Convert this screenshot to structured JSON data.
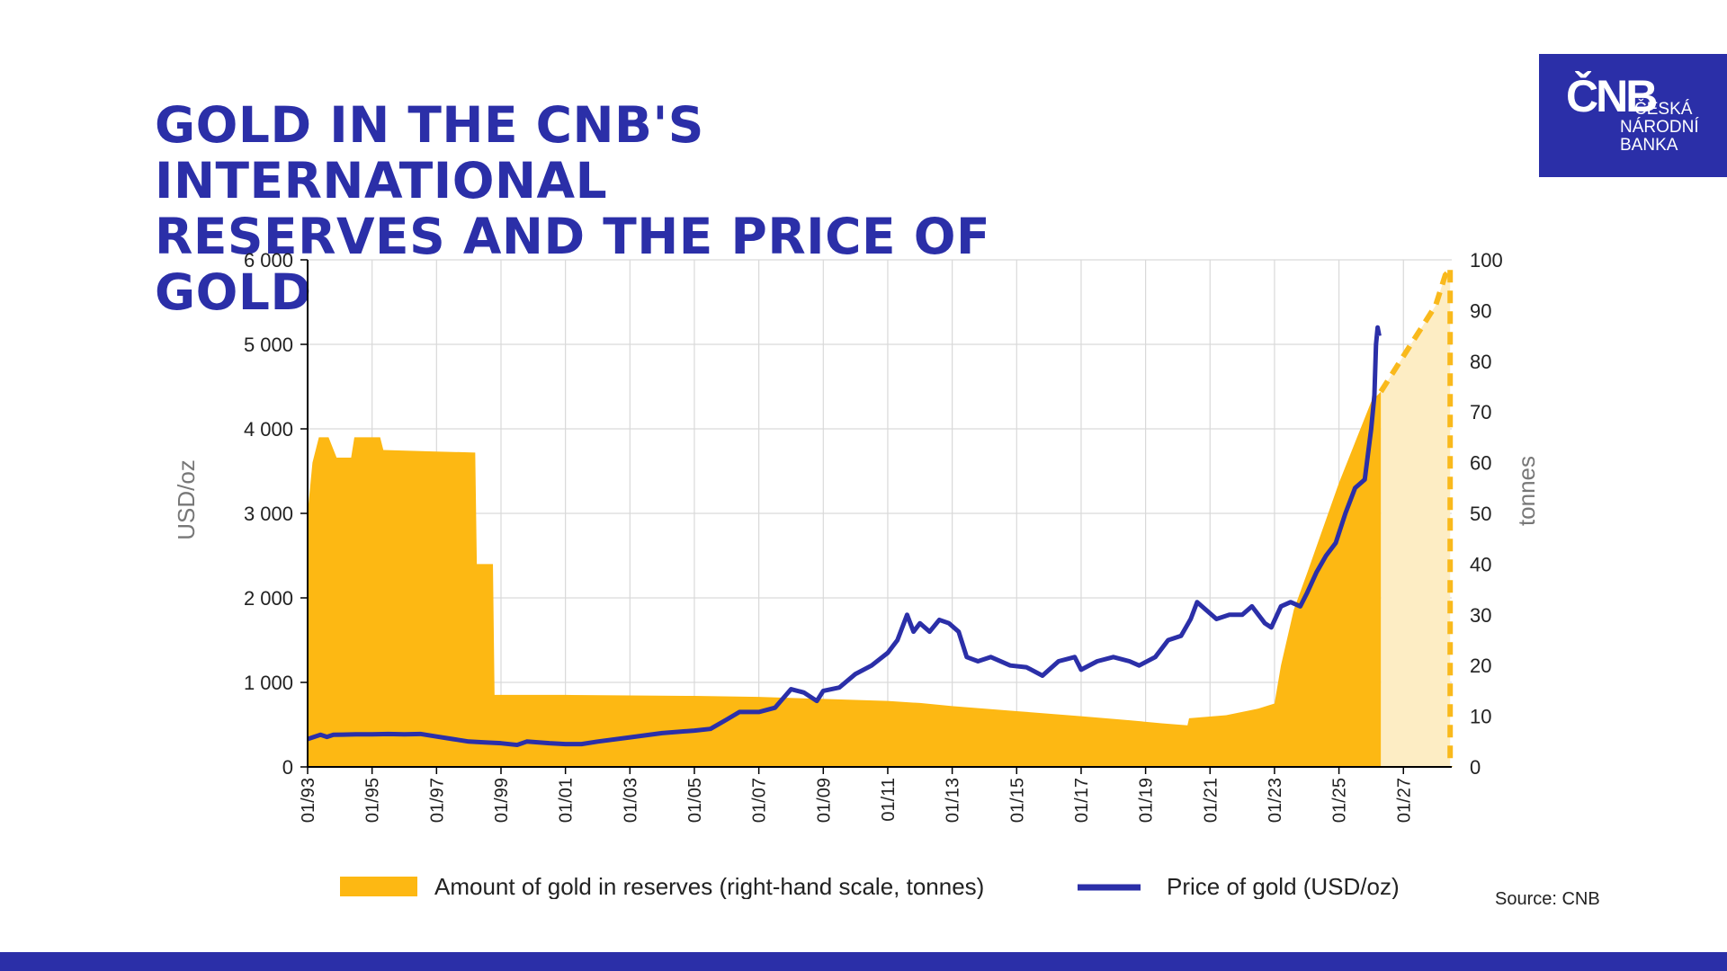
{
  "page": {
    "title_line1": "GOLD IN THE CNB'S INTERNATIONAL",
    "title_line2": "RESERVES AND THE PRICE OF GOLD",
    "source": "Source: CNB",
    "logo": {
      "mark": "ČNB",
      "name_line1": "ČESKÁ",
      "name_line2": "NÁRODNÍ",
      "name_line3": "BANKA"
    },
    "colors": {
      "brand_blue": "#2b2fa8",
      "gold_area": "#fdb813",
      "gold_forecast_fill": "#fdedc4",
      "gold_forecast_line": "#f9b91c",
      "price_line": "#2b2fa8",
      "grid": "#d9d9d9"
    }
  },
  "chart_data": {
    "type": "area",
    "left_axis": {
      "label": "USD/oz",
      "min": 0,
      "max": 6000,
      "ticks": [
        "0",
        "1 000",
        "2 000",
        "3 000",
        "4 000",
        "5 000",
        "6 000"
      ]
    },
    "right_axis": {
      "label": "tonnes",
      "min": 0,
      "max": 100,
      "ticks": [
        "0",
        "10",
        "20",
        "30",
        "40",
        "50",
        "60",
        "70",
        "80",
        "90",
        "100"
      ]
    },
    "x_axis": {
      "min": 1993.0,
      "max": 2028.5,
      "ticks": [
        "01/93",
        "01/95",
        "01/97",
        "01/99",
        "01/01",
        "01/03",
        "01/05",
        "01/07",
        "01/09",
        "01/11",
        "01/13",
        "01/15",
        "01/17",
        "01/19",
        "01/21",
        "01/23",
        "01/25",
        "01/27"
      ]
    },
    "grid": true,
    "legend_position": "bottom",
    "series": [
      {
        "name": "Amount of gold in reserves (right-hand scale, tonnes)",
        "kind": "area",
        "axis": "right",
        "points": [
          [
            1993.0,
            50
          ],
          [
            1993.15,
            60
          ],
          [
            1993.35,
            65
          ],
          [
            1993.65,
            65
          ],
          [
            1993.9,
            61
          ],
          [
            1994.35,
            61
          ],
          [
            1994.45,
            65
          ],
          [
            1995.25,
            65
          ],
          [
            1995.35,
            62.5
          ],
          [
            1997.0,
            62.2
          ],
          [
            1998.2,
            62.0
          ],
          [
            1998.25,
            40
          ],
          [
            1998.75,
            40
          ],
          [
            1998.8,
            14.2
          ],
          [
            2001.0,
            14.2
          ],
          [
            2003.0,
            14.1
          ],
          [
            2005.0,
            14.0
          ],
          [
            2007.0,
            13.8
          ],
          [
            2009.0,
            13.4
          ],
          [
            2011.0,
            13.0
          ],
          [
            2012.0,
            12.6
          ],
          [
            2013.0,
            12.0
          ],
          [
            2015.0,
            11.0
          ],
          [
            2017.0,
            10.0
          ],
          [
            2018.5,
            9.2
          ],
          [
            2019.5,
            8.6
          ],
          [
            2020.3,
            8.2
          ],
          [
            2020.35,
            9.6
          ],
          [
            2021.5,
            10.2
          ],
          [
            2022.5,
            11.5
          ],
          [
            2023.0,
            12.5
          ],
          [
            2023.2,
            20
          ],
          [
            2023.6,
            31
          ],
          [
            2024.0,
            38
          ],
          [
            2024.5,
            47
          ],
          [
            2025.0,
            56
          ],
          [
            2025.5,
            64
          ],
          [
            2026.0,
            72
          ],
          [
            2026.3,
            74
          ],
          [
            2026.3,
            0
          ]
        ]
      },
      {
        "name": "Gold in reserves (target, dashed)",
        "kind": "forecast",
        "axis": "right",
        "points": [
          [
            2026.3,
            74
          ],
          [
            2027.0,
            81
          ],
          [
            2027.5,
            86
          ],
          [
            2028.0,
            91
          ],
          [
            2028.3,
            97
          ],
          [
            2028.45,
            98
          ]
        ]
      },
      {
        "name": "Price of gold (USD/oz)",
        "kind": "line",
        "axis": "left",
        "points": [
          [
            1993.0,
            330
          ],
          [
            1993.4,
            380
          ],
          [
            1993.6,
            355
          ],
          [
            1993.8,
            380
          ],
          [
            1994.5,
            385
          ],
          [
            1995.0,
            385
          ],
          [
            1995.5,
            390
          ],
          [
            1996.0,
            385
          ],
          [
            1996.5,
            390
          ],
          [
            1997.0,
            360
          ],
          [
            1997.5,
            330
          ],
          [
            1998.0,
            300
          ],
          [
            1998.5,
            290
          ],
          [
            1999.0,
            280
          ],
          [
            1999.5,
            260
          ],
          [
            1999.8,
            300
          ],
          [
            2000.5,
            280
          ],
          [
            2001.0,
            270
          ],
          [
            2001.5,
            270
          ],
          [
            2002.0,
            300
          ],
          [
            2003.0,
            350
          ],
          [
            2004.0,
            400
          ],
          [
            2005.0,
            430
          ],
          [
            2005.5,
            450
          ],
          [
            2006.0,
            560
          ],
          [
            2006.4,
            650
          ],
          [
            2007.0,
            650
          ],
          [
            2007.5,
            700
          ],
          [
            2008.0,
            920
          ],
          [
            2008.4,
            880
          ],
          [
            2008.8,
            780
          ],
          [
            2009.0,
            900
          ],
          [
            2009.5,
            940
          ],
          [
            2010.0,
            1100
          ],
          [
            2010.5,
            1200
          ],
          [
            2011.0,
            1350
          ],
          [
            2011.3,
            1500
          ],
          [
            2011.6,
            1800
          ],
          [
            2011.8,
            1600
          ],
          [
            2012.0,
            1700
          ],
          [
            2012.3,
            1600
          ],
          [
            2012.6,
            1740
          ],
          [
            2012.9,
            1700
          ],
          [
            2013.2,
            1600
          ],
          [
            2013.45,
            1300
          ],
          [
            2013.8,
            1250
          ],
          [
            2014.2,
            1300
          ],
          [
            2014.8,
            1200
          ],
          [
            2015.3,
            1180
          ],
          [
            2015.8,
            1080
          ],
          [
            2016.3,
            1250
          ],
          [
            2016.8,
            1300
          ],
          [
            2017.0,
            1150
          ],
          [
            2017.5,
            1250
          ],
          [
            2018.0,
            1300
          ],
          [
            2018.5,
            1250
          ],
          [
            2018.8,
            1200
          ],
          [
            2019.3,
            1300
          ],
          [
            2019.7,
            1500
          ],
          [
            2020.1,
            1550
          ],
          [
            2020.4,
            1750
          ],
          [
            2020.6,
            1950
          ],
          [
            2020.9,
            1850
          ],
          [
            2021.2,
            1750
          ],
          [
            2021.6,
            1800
          ],
          [
            2022.0,
            1800
          ],
          [
            2022.3,
            1900
          ],
          [
            2022.7,
            1700
          ],
          [
            2022.9,
            1650
          ],
          [
            2023.2,
            1900
          ],
          [
            2023.5,
            1950
          ],
          [
            2023.8,
            1900
          ],
          [
            2024.0,
            2050
          ],
          [
            2024.3,
            2300
          ],
          [
            2024.6,
            2500
          ],
          [
            2024.9,
            2650
          ],
          [
            2025.2,
            3000
          ],
          [
            2025.5,
            3300
          ],
          [
            2025.8,
            3400
          ],
          [
            2026.0,
            4000
          ],
          [
            2026.1,
            4400
          ],
          [
            2026.15,
            5000
          ],
          [
            2026.2,
            5200
          ],
          [
            2026.25,
            5100
          ]
        ]
      }
    ],
    "legend": [
      {
        "label": "Amount of gold in reserves (right-hand scale, tonnes)",
        "marker": "box"
      },
      {
        "label": "Price of gold (USD/oz)",
        "marker": "line"
      }
    ]
  }
}
